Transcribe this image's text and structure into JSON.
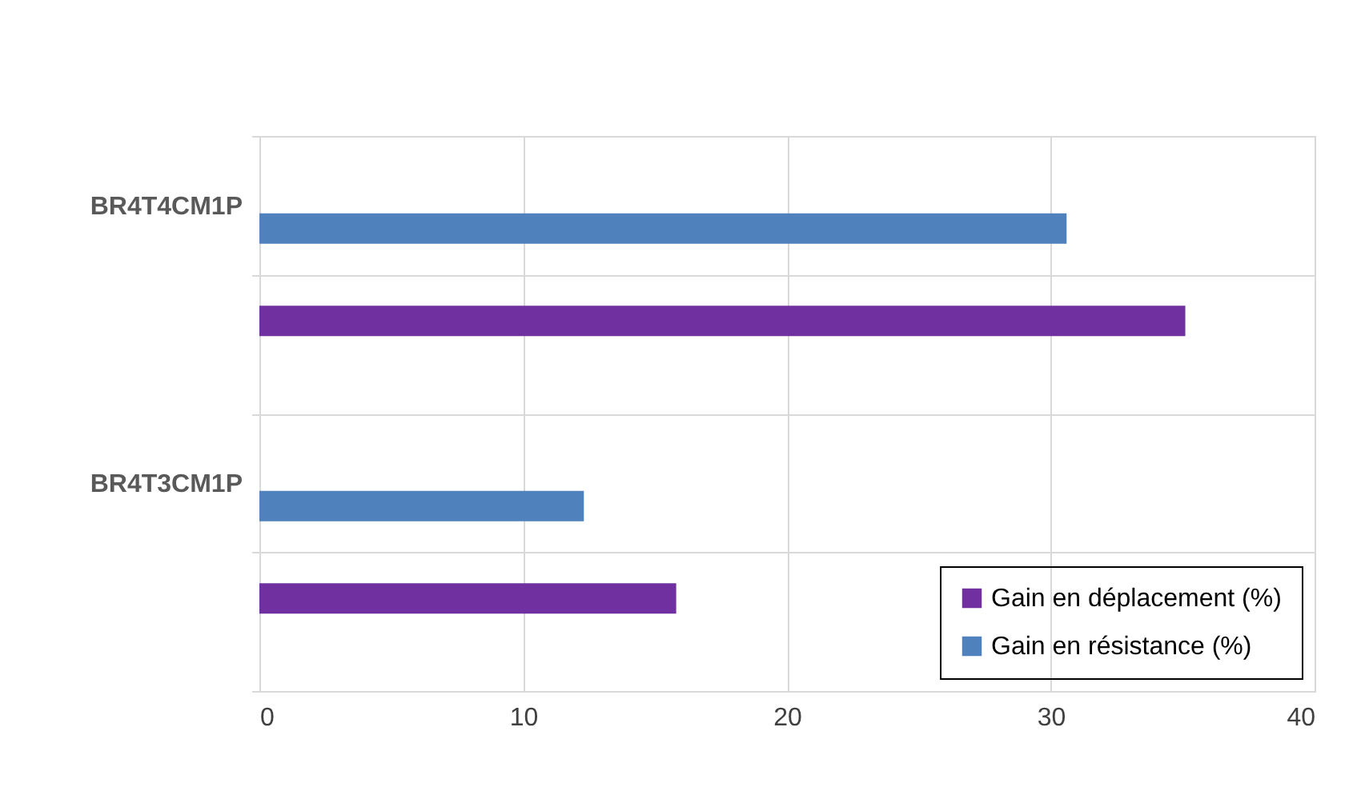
{
  "chart_data": {
    "type": "bar",
    "orientation": "horizontal",
    "categories": [
      "BR4T4CM1P",
      null,
      "BR4T3CM1P",
      null
    ],
    "series": [
      {
        "name": "Gain en déplacement (%)",
        "color": "#7030a0",
        "values": [
          null,
          35.1,
          null,
          15.8
        ]
      },
      {
        "name": "Gain en résistance (%)",
        "color": "#4f81bd",
        "values": [
          30.6,
          null,
          12.3,
          null
        ]
      }
    ],
    "xlim": [
      0,
      40
    ],
    "xticks": [
      0,
      10,
      20,
      30,
      40
    ],
    "grid": true,
    "legend": "bottom right"
  }
}
